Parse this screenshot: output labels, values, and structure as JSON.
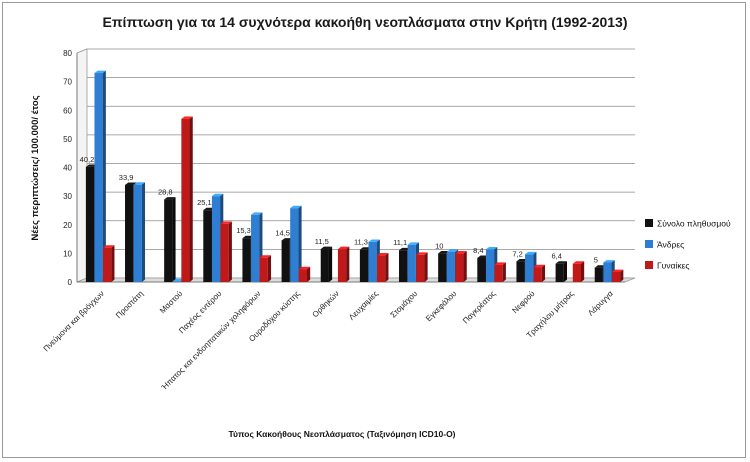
{
  "chart_data": {
    "type": "bar",
    "title": "Επίπτωση για τα 14 συχνότερα κακοήθη νεοπλάσματα στην Κρήτη (1992-2013)",
    "xlabel": "Τύπος Κακοήθους Νεοπλάσματος (Ταξινόμηση ICD10-O)",
    "ylabel": "Νέες περιπτώσεις/ 100.000/ έτος",
    "ylim": [
      0,
      80
    ],
    "yticks": [
      "0",
      "10",
      "20",
      "30",
      "40",
      "50",
      "60",
      "70",
      "80"
    ],
    "grid": true,
    "legend_position": "right",
    "categories": [
      "Πνεύμονα και βρόγχων",
      "Προστάτη",
      "Μαστού",
      "Παχέος εντέρου",
      "Ήπατος και ενδοηπατικών χοληφόρων",
      "Ουροδόχου κύστης",
      "Ορθηκών",
      "Λευχαιμίες",
      "Στομάχου",
      "Εγκεφάλου",
      "Παγκρέατος",
      "Νεφρού",
      "Τραχήλου μήτρας",
      "Λάρυγγα"
    ],
    "series": [
      {
        "name": "Σύνολο πληθυσμού",
        "color": "#111111",
        "values": [
          40.2,
          33.9,
          28.8,
          25.1,
          15.3,
          14.5,
          11.5,
          11.3,
          11.1,
          10,
          8.4,
          7.2,
          6.4,
          5
        ],
        "labels": [
          "40,2",
          "33,9",
          "28,8",
          "25,1",
          "15,3",
          "14,5",
          "11,5",
          "11,3",
          "11,1",
          "10",
          "8,4",
          "7,2",
          "6,4",
          "5"
        ]
      },
      {
        "name": "Άνδρες",
        "color": "#2e7fd4",
        "values": [
          73,
          34,
          0.3,
          30,
          23.5,
          25.8,
          0,
          14,
          13,
          10.5,
          11.4,
          9.7,
          0,
          6.8
        ]
      },
      {
        "name": "Γυναίκες",
        "color": "#c0191a",
        "values": [
          12,
          0,
          57,
          20.3,
          8.5,
          4.5,
          11.5,
          9.3,
          9.5,
          10,
          6,
          5.2,
          6.4,
          3.5
        ]
      }
    ]
  }
}
